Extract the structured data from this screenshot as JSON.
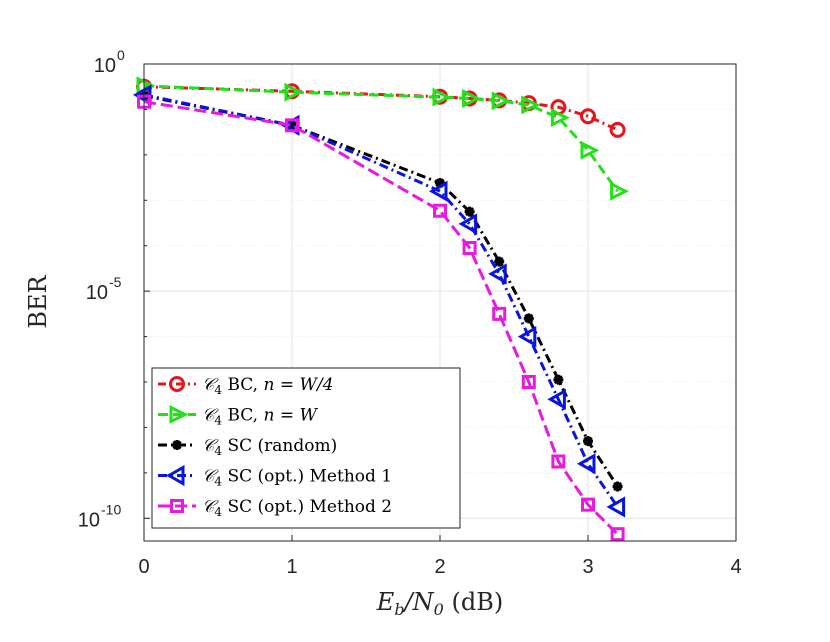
{
  "chart_data": {
    "type": "line",
    "title": "",
    "xlabel": "E_b/N_0 (dB)",
    "ylabel": "BER",
    "xlim": [
      0,
      4
    ],
    "ylim_log10": [
      -10.5,
      0
    ],
    "yscale": "log",
    "grid": true,
    "legend_position": "bottom-left",
    "x_ticks": [
      "0",
      "1",
      "2",
      "3",
      "4"
    ],
    "y_ticks": [
      {
        "base": "10",
        "exp": "0",
        "log10": 0
      },
      {
        "base": "10",
        "exp": "-5",
        "log10": -5
      },
      {
        "base": "10",
        "exp": "-10",
        "log10": -10
      }
    ],
    "series": [
      {
        "name": "C4 BC, n = W/4",
        "legend_math": "𝒞",
        "legend_sub": "4",
        "legend_rest": " BC, ",
        "legend_tail": "n = W/4",
        "color": "#e8141a",
        "marker": "circle",
        "dash": "8 4 2 4",
        "x": [
          0,
          1,
          2,
          2.2,
          2.4,
          2.6,
          2.8,
          3.0,
          3.2
        ],
        "log10_y": [
          -0.5,
          -0.6,
          -0.72,
          -0.76,
          -0.8,
          -0.86,
          -0.95,
          -1.15,
          -1.45
        ]
      },
      {
        "name": "C4 BC, n = W",
        "legend_math": "𝒞",
        "legend_sub": "4",
        "legend_rest": " BC, ",
        "legend_tail": "n = W",
        "color": "#22e01a",
        "marker": "triangle-right",
        "dash": "10 5",
        "x": [
          0,
          1,
          2,
          2.2,
          2.4,
          2.6,
          2.8,
          3.0,
          3.2
        ],
        "log10_y": [
          -0.48,
          -0.62,
          -0.73,
          -0.76,
          -0.81,
          -0.9,
          -1.18,
          -1.9,
          -2.8
        ]
      },
      {
        "name": "C4 SC (random)",
        "legend_math": "𝒞",
        "legend_sub": "4",
        "legend_rest": " SC (random)",
        "legend_tail": "",
        "color": "#000000",
        "marker": "asterisk",
        "dash": "9 4 2 4",
        "x": [
          0,
          1,
          2,
          2.2,
          2.4,
          2.6,
          2.8,
          3.0,
          3.2
        ],
        "log10_y": [
          -0.7,
          -1.35,
          -2.62,
          -3.25,
          -4.35,
          -5.6,
          -6.95,
          -8.3,
          -9.3
        ]
      },
      {
        "name": "C4 SC (opt.) Method 1",
        "legend_math": "𝒞",
        "legend_sub": "4",
        "legend_rest": " SC (opt.) Method 1",
        "legend_tail": "",
        "color": "#0a14e0",
        "marker": "triangle-left",
        "dash": "9 4 2 4",
        "x": [
          0,
          1,
          2,
          2.2,
          2.4,
          2.6,
          2.8,
          3.0,
          3.2
        ],
        "log10_y": [
          -0.68,
          -1.35,
          -2.8,
          -3.52,
          -4.62,
          -6.0,
          -7.38,
          -8.8,
          -9.75
        ]
      },
      {
        "name": "C4 SC (opt.) Method 2",
        "legend_math": "𝒞",
        "legend_sub": "4",
        "legend_rest": " SC (opt.) Method 2",
        "legend_tail": "",
        "color": "#e81ae0",
        "marker": "square",
        "dash": "12 5",
        "x": [
          0,
          1,
          2,
          2.2,
          2.4,
          2.6,
          2.8,
          3.0,
          3.2
        ],
        "log10_y": [
          -0.83,
          -1.35,
          -3.23,
          -4.05,
          -5.5,
          -7.0,
          -8.75,
          -9.7,
          -10.35
        ]
      }
    ]
  }
}
